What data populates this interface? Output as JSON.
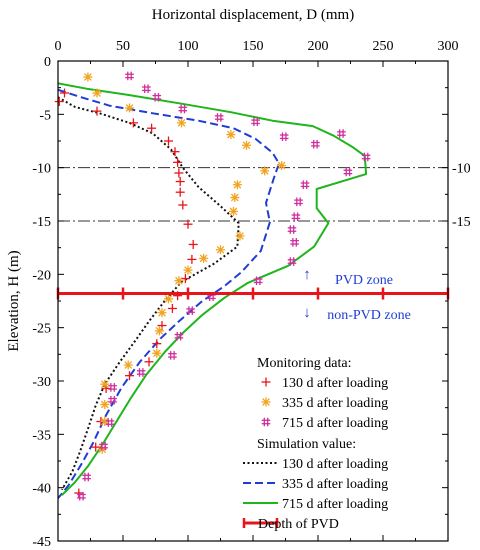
{
  "chart_data": {
    "type": "line",
    "xlabel": "Horizontal displacement, D (mm)",
    "ylabel": "Elevation, H (m)",
    "xlim": [
      0,
      300
    ],
    "ylim": [
      -45,
      0
    ],
    "x_ticks": [
      0,
      50,
      100,
      150,
      200,
      250,
      300
    ],
    "y_ticks": [
      0,
      -5,
      -10,
      -15,
      -20,
      -25,
      -30,
      -35,
      -40,
      -45
    ],
    "x_axis_position": "top",
    "grid": false,
    "legend_position": "bottom-right",
    "reference_lines": [
      {
        "y": -10,
        "label": "-10",
        "style": "dash-dot"
      },
      {
        "y": -15,
        "label": "-15",
        "style": "dash-dot"
      }
    ],
    "pvd_depth": {
      "name": "Depth of PVD",
      "y": -21.8,
      "x_range": [
        0,
        300
      ],
      "markers_x": [
        0,
        50,
        100,
        150,
        200,
        250,
        300
      ],
      "color": "#e8141a"
    },
    "zone_labels": {
      "upper": "PVD zone",
      "lower": "non-PVD zone"
    },
    "legend": {
      "monitoring_header": "Monitoring data:",
      "simulation_header": "Simulation value:"
    },
    "monitoring_series": [
      {
        "name": "130 d after loading",
        "marker": "plus",
        "color": "#e8141a",
        "points": [
          [
            1,
            -3.8
          ],
          [
            5,
            -3.0
          ],
          [
            30,
            -4.7
          ],
          [
            58,
            -5.8
          ],
          [
            72,
            -6.3
          ],
          [
            85,
            -7.5
          ],
          [
            90,
            -8.5
          ],
          [
            92,
            -9.5
          ],
          [
            93,
            -10.5
          ],
          [
            94,
            -11.3
          ],
          [
            94,
            -12.3
          ],
          [
            96,
            -13.5
          ],
          [
            100,
            -15.3
          ],
          [
            104,
            -17.2
          ],
          [
            103,
            -18.6
          ],
          [
            98,
            -20.4
          ],
          [
            92,
            -22.0
          ],
          [
            88,
            -23.2
          ],
          [
            80,
            -24.8
          ],
          [
            76,
            -26.5
          ],
          [
            70,
            -28.2
          ],
          [
            55,
            -29.5
          ],
          [
            37,
            -30.7
          ],
          [
            33,
            -33.8
          ],
          [
            29,
            -36.2
          ],
          [
            16,
            -40.5
          ]
        ]
      },
      {
        "name": "335 d after loading",
        "marker": "asterisk",
        "color": "#f2a31f",
        "points": [
          [
            23,
            -1.5
          ],
          [
            30,
            -3.0
          ],
          [
            55,
            -4.4
          ],
          [
            95,
            -5.8
          ],
          [
            133,
            -6.9
          ],
          [
            145,
            -7.9
          ],
          [
            172,
            -9.8
          ],
          [
            159,
            -10.3
          ],
          [
            138,
            -11.6
          ],
          [
            136,
            -12.8
          ],
          [
            135,
            -14.1
          ],
          [
            140,
            -16.4
          ],
          [
            125,
            -17.7
          ],
          [
            112,
            -18.5
          ],
          [
            100,
            -19.6
          ],
          [
            93,
            -20.6
          ],
          [
            85,
            -22.3
          ],
          [
            80,
            -23.6
          ],
          [
            78,
            -25.3
          ],
          [
            76,
            -27.4
          ],
          [
            54,
            -28.5
          ],
          [
            36,
            -30.3
          ],
          [
            36,
            -32.2
          ],
          [
            36,
            -33.8
          ],
          [
            34,
            -36.4
          ]
        ]
      },
      {
        "name": "715 d after loading",
        "marker": "hash",
        "color": "#cf2f9c",
        "points": [
          [
            55,
            -1.4
          ],
          [
            68,
            -2.6
          ],
          [
            76,
            -3.4
          ],
          [
            96,
            -4.5
          ],
          [
            124,
            -5.3
          ],
          [
            152,
            -5.7
          ],
          [
            174,
            -7.1
          ],
          [
            198,
            -7.8
          ],
          [
            218,
            -6.8
          ],
          [
            237,
            -9.0
          ],
          [
            223,
            -10.4
          ],
          [
            190,
            -11.6
          ],
          [
            185,
            -13.2
          ],
          [
            183,
            -14.6
          ],
          [
            180,
            -15.8
          ],
          [
            182,
            -17.0
          ],
          [
            180,
            -18.8
          ],
          [
            154,
            -20.6
          ],
          [
            118,
            -22.1
          ],
          [
            102,
            -23.4
          ],
          [
            93,
            -25.8
          ],
          [
            88,
            -27.6
          ],
          [
            64,
            -29.2
          ],
          [
            42,
            -30.6
          ],
          [
            42,
            -31.8
          ],
          [
            40,
            -33.9
          ],
          [
            35,
            -36.1
          ],
          [
            22,
            -39.0
          ],
          [
            18,
            -40.8
          ]
        ]
      }
    ],
    "simulation_series": [
      {
        "name": "130 d after loading",
        "style": "dotted",
        "color": "#111111",
        "points": [
          [
            0,
            -3.4
          ],
          [
            13,
            -4.3
          ],
          [
            32,
            -4.9
          ],
          [
            55,
            -5.8
          ],
          [
            73,
            -6.8
          ],
          [
            87,
            -8.3
          ],
          [
            96,
            -10.0
          ],
          [
            108,
            -11.8
          ],
          [
            125,
            -13.6
          ],
          [
            139,
            -15.2
          ],
          [
            138,
            -17.4
          ],
          [
            120,
            -19.0
          ],
          [
            95,
            -20.7
          ],
          [
            82,
            -22.5
          ],
          [
            70,
            -24.4
          ],
          [
            59,
            -26.3
          ],
          [
            47,
            -28.3
          ],
          [
            36,
            -30.3
          ],
          [
            29,
            -32.3
          ],
          [
            23,
            -34.5
          ],
          [
            17,
            -36.6
          ],
          [
            11,
            -38.5
          ],
          [
            3,
            -40.2
          ]
        ]
      },
      {
        "name": "335 d after loading",
        "style": "dashed",
        "color": "#1f3dd6",
        "points": [
          [
            0,
            -2.7
          ],
          [
            18,
            -3.4
          ],
          [
            40,
            -4.2
          ],
          [
            73,
            -4.9
          ],
          [
            108,
            -5.6
          ],
          [
            135,
            -6.3
          ],
          [
            152,
            -7.3
          ],
          [
            165,
            -8.6
          ],
          [
            170,
            -9.6
          ],
          [
            166,
            -11.0
          ],
          [
            160,
            -13.3
          ],
          [
            163,
            -15.1
          ],
          [
            156,
            -17.8
          ],
          [
            141,
            -19.8
          ],
          [
            128,
            -21.1
          ],
          [
            110,
            -22.6
          ],
          [
            94,
            -24.3
          ],
          [
            79,
            -26.0
          ],
          [
            63,
            -28.2
          ],
          [
            49,
            -30.6
          ],
          [
            37,
            -33.2
          ],
          [
            27,
            -35.8
          ],
          [
            18,
            -37.8
          ],
          [
            8,
            -39.8
          ],
          [
            0,
            -41.0
          ]
        ]
      },
      {
        "name": "715 d after loading",
        "style": "solid",
        "color": "#1fb51c",
        "points": [
          [
            0,
            -2.1
          ],
          [
            22,
            -2.6
          ],
          [
            55,
            -3.2
          ],
          [
            95,
            -4.0
          ],
          [
            133,
            -4.8
          ],
          [
            165,
            -5.6
          ],
          [
            196,
            -6.1
          ],
          [
            212,
            -7.0
          ],
          [
            227,
            -8.1
          ],
          [
            236,
            -8.9
          ],
          [
            237,
            -10.6
          ],
          [
            199,
            -12.0
          ],
          [
            199,
            -13.8
          ],
          [
            208,
            -15.2
          ],
          [
            197,
            -17.4
          ],
          [
            177,
            -19.2
          ],
          [
            146,
            -20.8
          ],
          [
            128,
            -22.2
          ],
          [
            111,
            -23.8
          ],
          [
            96,
            -25.5
          ],
          [
            82,
            -27.3
          ],
          [
            68,
            -29.4
          ],
          [
            56,
            -31.6
          ],
          [
            45,
            -33.8
          ],
          [
            34,
            -36.0
          ],
          [
            23,
            -38.0
          ],
          [
            13,
            -39.5
          ],
          [
            3,
            -40.7
          ]
        ]
      }
    ]
  }
}
